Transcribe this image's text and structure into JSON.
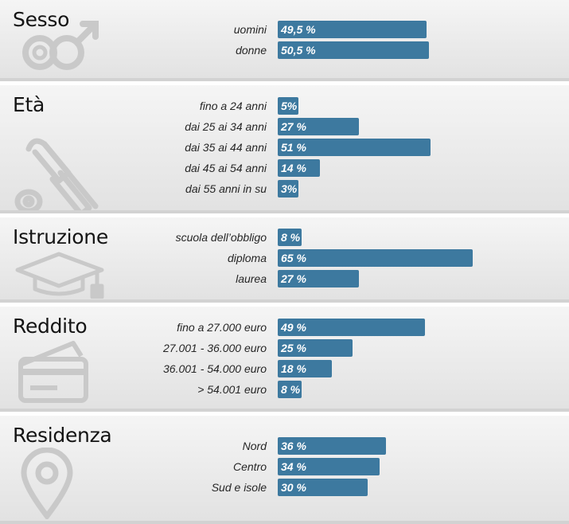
{
  "chart_data": [
    {
      "type": "bar",
      "title": "Sesso",
      "icon": "gender-icon",
      "categories": [
        "uomini",
        "donne"
      ],
      "values": [
        49.5,
        50.5
      ],
      "value_labels": [
        "49,5 %",
        "50,5 %"
      ]
    },
    {
      "type": "bar",
      "title": "Età",
      "icon": "baby-bottle-icon",
      "categories": [
        "fino a 24 anni",
        "dai 25 ai 34 anni",
        "dai 35 ai 44 anni",
        "dai 45 ai 54 anni",
        "dai 55 anni in su"
      ],
      "values": [
        5,
        27,
        51,
        14,
        3
      ],
      "value_labels": [
        "5%",
        "27 %",
        "51 %",
        "14 %",
        "3%"
      ]
    },
    {
      "type": "bar",
      "title": "Istruzione",
      "icon": "graduation-cap-icon",
      "categories": [
        "scuola dell’obbligo",
        "diploma",
        "laurea"
      ],
      "values": [
        8,
        65,
        27
      ],
      "value_labels": [
        "8 %",
        "65 %",
        "27 %"
      ]
    },
    {
      "type": "bar",
      "title": "Reddito",
      "icon": "wallet-icon",
      "categories": [
        "fino a 27.000 euro",
        "27.001 - 36.000 euro",
        "36.001 - 54.000  euro",
        "> 54.001 euro"
      ],
      "values": [
        49,
        25,
        18,
        8
      ],
      "value_labels": [
        "49 %",
        "25 %",
        "18 %",
        "8 %"
      ]
    },
    {
      "type": "bar",
      "title": "Residenza",
      "icon": "location-pin-icon",
      "categories": [
        "Nord",
        "Centro",
        "Sud e isole"
      ],
      "values": [
        36,
        34,
        30
      ],
      "value_labels": [
        "36 %",
        "34 %",
        "30 %"
      ]
    }
  ],
  "colors": {
    "bar": "#3d799f",
    "panel": "#ececec",
    "icon": "#c9c9c9"
  }
}
